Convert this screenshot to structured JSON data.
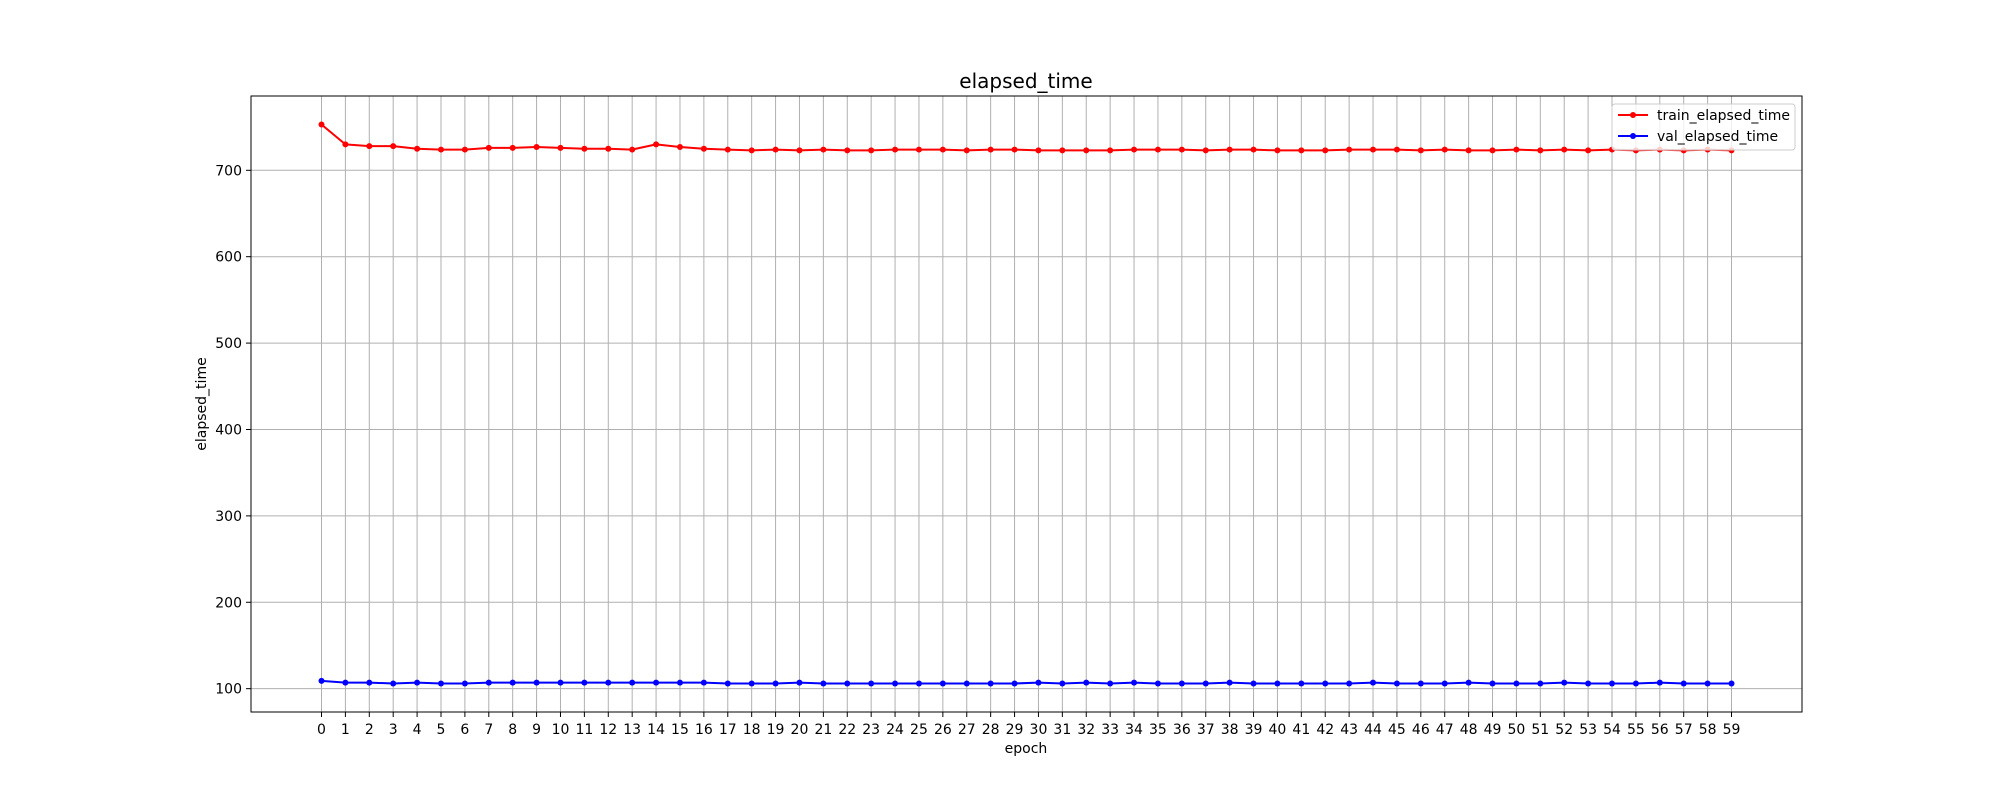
{
  "chart_data": {
    "type": "line",
    "title": "elapsed_time",
    "xlabel": "epoch",
    "ylabel": "elapsed_time",
    "x": [
      0,
      1,
      2,
      3,
      4,
      5,
      6,
      7,
      8,
      9,
      10,
      11,
      12,
      13,
      14,
      15,
      16,
      17,
      18,
      19,
      20,
      21,
      22,
      23,
      24,
      25,
      26,
      27,
      28,
      29,
      30,
      31,
      32,
      33,
      34,
      35,
      36,
      37,
      38,
      39,
      40,
      41,
      42,
      43,
      44,
      45,
      46,
      47,
      48,
      49,
      50,
      51,
      52,
      53,
      54,
      55,
      56,
      57,
      58,
      59
    ],
    "y_ticks": [
      100,
      200,
      300,
      400,
      500,
      600,
      700
    ],
    "ylim": [
      73,
      786
    ],
    "xlim": [
      -2.95,
      61.95
    ],
    "grid": true,
    "legend_position": "top-right",
    "series": [
      {
        "name": "train_elapsed_time",
        "color": "#ff0000",
        "marker": "circle",
        "values": [
          753,
          730,
          728,
          728,
          725,
          724,
          724,
          726,
          726,
          727,
          726,
          725,
          725,
          724,
          730,
          727,
          725,
          724,
          723,
          724,
          723,
          724,
          723,
          723,
          724,
          724,
          724,
          723,
          724,
          724,
          723,
          723,
          723,
          723,
          724,
          724,
          724,
          723,
          724,
          724,
          723,
          723,
          723,
          724,
          724,
          724,
          723,
          724,
          723,
          723,
          724,
          723,
          724,
          723,
          724,
          723,
          724,
          723,
          724,
          723
        ]
      },
      {
        "name": "val_elapsed_time",
        "color": "#0000ff",
        "marker": "circle",
        "values": [
          109,
          107,
          107,
          106,
          107,
          106,
          106,
          107,
          107,
          107,
          107,
          107,
          107,
          107,
          107,
          107,
          107,
          106,
          106,
          106,
          107,
          106,
          106,
          106,
          106,
          106,
          106,
          106,
          106,
          106,
          107,
          106,
          107,
          106,
          107,
          106,
          106,
          106,
          107,
          106,
          106,
          106,
          106,
          106,
          107,
          106,
          106,
          106,
          107,
          106,
          106,
          106,
          107,
          106,
          106,
          106,
          107,
          106,
          106,
          106
        ]
      }
    ]
  }
}
